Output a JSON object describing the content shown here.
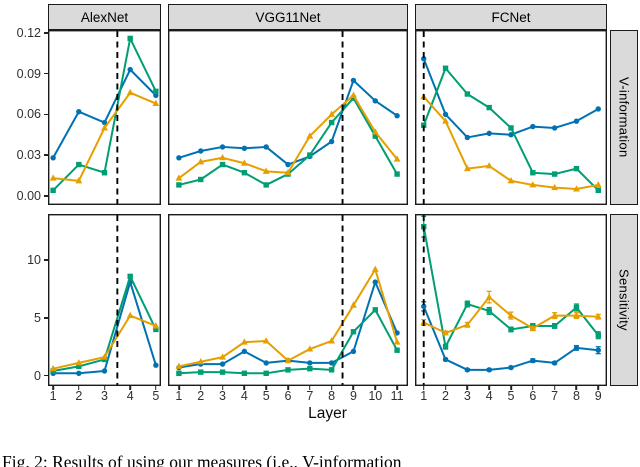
{
  "figure": {
    "caption": "Fig. 2: Results of using our measures (i.e., V-information"
  },
  "chart_data": {
    "type": "line",
    "title": "",
    "xlabel": "Layer",
    "grid": "off",
    "legend": "none",
    "facet_columns": [
      "AlexNet",
      "VGG11Net",
      "FCNet"
    ],
    "facet_rows": [
      "V-information",
      "Sensitivity"
    ],
    "series_meta": [
      {
        "id": "series-blue-circle",
        "color": "#0072B2",
        "marker": "circle"
      },
      {
        "id": "series-green-square",
        "color": "#009E73",
        "marker": "square"
      },
      {
        "id": "series-orange-triangle",
        "color": "#E69F00",
        "marker": "triangle"
      }
    ],
    "rows": [
      {
        "label": "V-information",
        "ylim": [
          -0.0068,
          0.1222
        ],
        "yticks": [
          {
            "v": 0.0,
            "label": "0.00"
          },
          {
            "v": 0.03,
            "label": "0.03"
          },
          {
            "v": 0.06,
            "label": "0.06"
          },
          {
            "v": 0.09,
            "label": "0.09"
          },
          {
            "v": 0.12,
            "label": "0.12"
          }
        ]
      },
      {
        "label": "Sensitivity",
        "ylim": [
          -0.9,
          14.0
        ],
        "yticks": [
          {
            "v": 0,
            "label": "0"
          },
          {
            "v": 5,
            "label": "5"
          },
          {
            "v": 10,
            "label": "10"
          }
        ]
      }
    ],
    "panels": [
      {
        "facet_col": "AlexNet",
        "facet_row": "V-information",
        "x": [
          1,
          2,
          3,
          4,
          5
        ],
        "vline": 3.5,
        "series": [
          {
            "id": "series-blue-circle",
            "values": [
              0.028,
              0.062,
              0.054,
              0.093,
              0.074
            ]
          },
          {
            "id": "series-green-square",
            "values": [
              0.004,
              0.023,
              0.017,
              0.116,
              0.077
            ]
          },
          {
            "id": "series-orange-triangle",
            "values": [
              0.013,
              0.011,
              0.05,
              0.076,
              0.068
            ]
          }
        ]
      },
      {
        "facet_col": "VGG11Net",
        "facet_row": "V-information",
        "x": [
          1,
          2,
          3,
          4,
          5,
          6,
          7,
          8,
          9,
          10,
          11
        ],
        "vline": 8.5,
        "series": [
          {
            "id": "series-blue-circle",
            "values": [
              0.028,
              0.033,
              0.036,
              0.035,
              0.036,
              0.023,
              0.029,
              0.04,
              0.085,
              0.07,
              0.059
            ]
          },
          {
            "id": "series-green-square",
            "values": [
              0.008,
              0.012,
              0.023,
              0.017,
              0.008,
              0.016,
              0.03,
              0.054,
              0.072,
              0.044,
              0.016
            ]
          },
          {
            "id": "series-orange-triangle",
            "values": [
              0.013,
              0.025,
              0.028,
              0.024,
              0.018,
              0.017,
              0.044,
              0.06,
              0.074,
              0.047,
              0.027
            ]
          }
        ]
      },
      {
        "facet_col": "FCNet",
        "facet_row": "V-information",
        "x": [
          1,
          2,
          3,
          4,
          5,
          6,
          7,
          8,
          9
        ],
        "vline": 1,
        "series": [
          {
            "id": "series-blue-circle",
            "values": [
              0.101,
              0.06,
              0.043,
              0.046,
              0.045,
              0.051,
              0.05,
              0.055,
              0.064
            ]
          },
          {
            "id": "series-green-square",
            "values": [
              0.052,
              0.094,
              0.075,
              0.065,
              0.05,
              0.017,
              0.016,
              0.02,
              0.004
            ]
          },
          {
            "id": "series-orange-triangle",
            "values": [
              0.073,
              0.055,
              0.02,
              0.022,
              0.011,
              0.008,
              0.006,
              0.005,
              0.008
            ]
          }
        ]
      },
      {
        "facet_col": "AlexNet",
        "facet_row": "Sensitivity",
        "x": [
          1,
          2,
          3,
          4,
          5
        ],
        "vline": 3.5,
        "series": [
          {
            "id": "series-blue-circle",
            "values": [
              0.2,
              0.2,
              0.4,
              8.1,
              0.9
            ]
          },
          {
            "id": "series-green-square",
            "values": [
              0.4,
              0.8,
              1.4,
              8.6,
              4.0
            ]
          },
          {
            "id": "series-orange-triangle",
            "values": [
              0.6,
              1.1,
              1.6,
              5.2,
              4.3
            ]
          }
        ]
      },
      {
        "facet_col": "VGG11Net",
        "facet_row": "Sensitivity",
        "x": [
          1,
          2,
          3,
          4,
          5,
          6,
          7,
          8,
          9,
          10,
          11
        ],
        "vline": 8.5,
        "series": [
          {
            "id": "series-blue-circle",
            "values": [
              0.7,
              1.0,
              1.0,
              2.1,
              1.1,
              1.3,
              1.1,
              1.1,
              2.1,
              8.1,
              3.7
            ]
          },
          {
            "id": "series-green-square",
            "values": [
              0.2,
              0.3,
              0.3,
              0.2,
              0.2,
              0.5,
              0.6,
              0.5,
              3.8,
              5.7,
              2.2
            ]
          },
          {
            "id": "series-orange-triangle",
            "values": [
              0.8,
              1.2,
              1.6,
              2.9,
              3.0,
              1.3,
              2.3,
              3.0,
              6.1,
              9.2,
              2.9
            ]
          }
        ]
      },
      {
        "facet_col": "FCNet",
        "facet_row": "Sensitivity",
        "x": [
          1,
          2,
          3,
          4,
          5,
          6,
          7,
          8,
          9
        ],
        "vline": 1,
        "series": [
          {
            "id": "series-blue-circle",
            "values": [
              6.0,
              1.4,
              0.5,
              0.5,
              0.7,
              1.3,
              1.1,
              2.4,
              2.2
            ],
            "err": [
              0.4,
              0.1,
              0.1,
              0.1,
              0.1,
              0.15,
              0.1,
              0.2,
              0.3
            ]
          },
          {
            "id": "series-green-square",
            "values": [
              12.9,
              2.5,
              6.2,
              5.6,
              4.0,
              4.3,
              4.3,
              5.9,
              3.5
            ],
            "err": [
              0.9,
              0.2,
              0.25,
              0.3,
              0.2,
              0.2,
              0.2,
              0.3,
              0.3
            ]
          },
          {
            "id": "series-orange-triangle",
            "values": [
              4.6,
              3.7,
              4.4,
              6.8,
              5.2,
              4.1,
              5.2,
              5.2,
              5.1
            ],
            "err": [
              0.25,
              0.15,
              0.2,
              0.5,
              0.3,
              0.2,
              0.25,
              0.25,
              0.2
            ]
          }
        ]
      }
    ]
  }
}
